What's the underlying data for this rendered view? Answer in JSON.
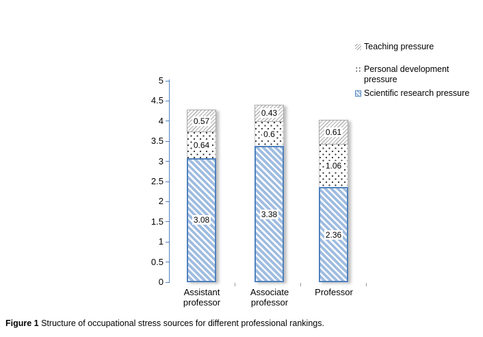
{
  "figure": {
    "caption_prefix": "Figure 1",
    "caption_text": " Structure of occupational stress sources for different professional rankings."
  },
  "legend": {
    "position": "top-right",
    "items": [
      {
        "label": "Teaching pressure",
        "swatch": "gray-diagonal-hatch"
      },
      {
        "label": "Personal development pressure",
        "swatch": "black-dots"
      },
      {
        "label": "Scientific research pressure",
        "swatch": "blue-diagonal-hatch"
      }
    ]
  },
  "colors": {
    "axis": "#4F81BD",
    "bar_border": "#4F81BD",
    "bar_fill_stripe": "#9FBCE0",
    "hatch_line": "#ADADAD",
    "dot": "#3C3C3C",
    "text": "#000000",
    "background": "#FFFFFF"
  },
  "chart_data": {
    "type": "bar",
    "stacked": true,
    "grid": false,
    "title": "",
    "xlabel": "",
    "ylabel": "",
    "ylim": [
      0,
      5
    ],
    "ytick_step": 0.5,
    "yticks": [
      "0",
      "0.5",
      "1",
      "1.5",
      "2",
      "2.5",
      "3",
      "3.5",
      "4",
      "4.5",
      "5"
    ],
    "categories": [
      "Assistant\nprofessor",
      "Associate\nprofessor",
      "Professor"
    ],
    "series": [
      {
        "name": "Scientific research pressure",
        "pattern": "blue-diagonal-hatch",
        "values": [
          3.08,
          3.38,
          2.36
        ]
      },
      {
        "name": "Personal development pressure",
        "pattern": "black-dots",
        "values": [
          0.64,
          0.6,
          1.06
        ]
      },
      {
        "name": "Teaching pressure",
        "pattern": "gray-diagonal-hatch",
        "values": [
          0.57,
          0.43,
          0.61
        ]
      }
    ],
    "data_labels": [
      [
        "3.08",
        "0.64",
        "0.57"
      ],
      [
        "3.38",
        "0.6",
        "0.43"
      ],
      [
        "2.36",
        "1.06",
        "0.61"
      ]
    ],
    "bar_totals": [
      4.29,
      4.41,
      4.03
    ]
  }
}
